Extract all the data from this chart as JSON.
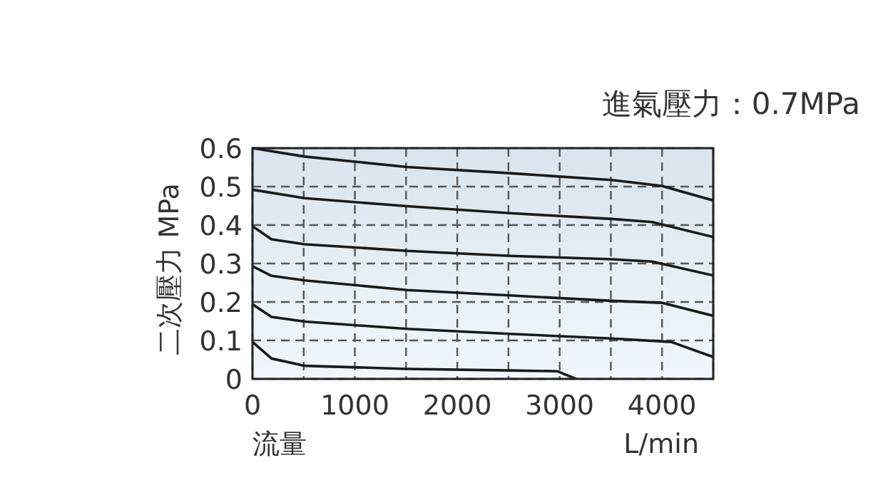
{
  "chart_data": {
    "type": "line",
    "title": "進氣壓力：0.7MPa",
    "xlabel": "流量 L/min",
    "ylabel": "二次壓力 MPa",
    "xlim": [
      0,
      4500
    ],
    "ylim": [
      0,
      0.6
    ],
    "xticks": [
      0,
      {
        "value": 500,
        "label": null
      },
      1000,
      {
        "value": 1500,
        "label": null
      },
      2000,
      {
        "value": 2500,
        "label": null
      },
      3000,
      {
        "value": 3500,
        "label": null
      },
      4000,
      {
        "value": 4500,
        "label": null
      }
    ],
    "yticks": [
      0,
      0.1,
      0.2,
      0.3,
      0.4,
      0.5,
      0.6
    ],
    "grid": true,
    "line_style": "solid",
    "marker": "none",
    "series": [
      {
        "color": "#1a1a1a",
        "x": [
          0,
          511,
          1510,
          2509,
          3508,
          3996,
          4500
        ],
        "values": [
          0.6,
          0.578,
          0.551,
          0.535,
          0.517,
          0.502,
          0.464
        ]
      },
      {
        "color": "#1a1a1a",
        "x": [
          0,
          511,
          1510,
          2509,
          3508,
          3903,
          4500
        ],
        "values": [
          0.492,
          0.47,
          0.449,
          0.431,
          0.416,
          0.408,
          0.369
        ]
      },
      {
        "color": "#1a1a1a",
        "x": [
          0,
          186,
          511,
          1510,
          2509,
          3508,
          3903,
          4500
        ],
        "values": [
          0.397,
          0.363,
          0.35,
          0.333,
          0.32,
          0.311,
          0.305,
          0.269
        ]
      },
      {
        "color": "#1a1a1a",
        "x": [
          0,
          186,
          511,
          1510,
          2509,
          3508,
          3996,
          4500
        ],
        "values": [
          0.293,
          0.268,
          0.256,
          0.231,
          0.217,
          0.203,
          0.198,
          0.164
        ]
      },
      {
        "color": "#1a1a1a",
        "x": [
          0,
          186,
          511,
          1510,
          2509,
          3508,
          4089,
          4500
        ],
        "values": [
          0.194,
          0.161,
          0.149,
          0.13,
          0.117,
          0.105,
          0.096,
          0.057
        ]
      },
      {
        "color": "#1a1a1a",
        "x": [
          0,
          186,
          511,
          1510,
          2509,
          2974,
          3160
        ],
        "values": [
          0.096,
          0.053,
          0.034,
          0.026,
          0.022,
          0.02,
          0
        ]
      }
    ]
  }
}
